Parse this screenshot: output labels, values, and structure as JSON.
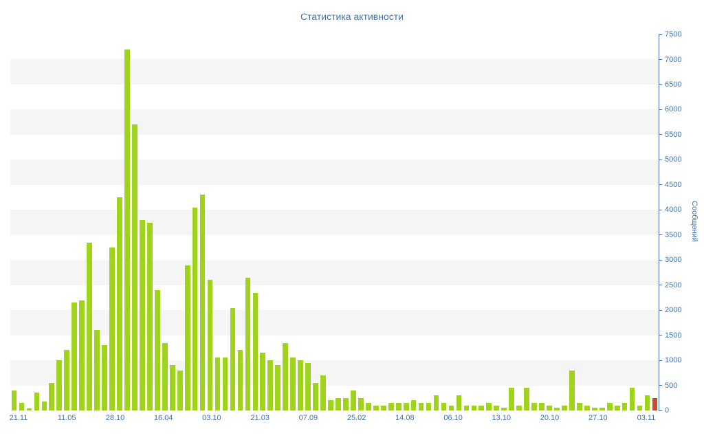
{
  "chart_data": {
    "type": "bar",
    "title": "Статистика активности",
    "xlabel": "",
    "ylabel": "Сообщений",
    "ylim": [
      0,
      7500
    ],
    "y_tick_step": 500,
    "y_tick_labels": [
      "0",
      "500",
      "1000",
      "1500",
      "2000",
      "2500",
      "3000",
      "3500",
      "4000",
      "4500",
      "5000",
      "5500",
      "6000",
      "6500",
      "7000",
      "7500"
    ],
    "x_tick_labels": [
      "21.11",
      "11.05",
      "28.10",
      "16.04",
      "03.10",
      "21.03",
      "07.09",
      "25.02",
      "14.08",
      "06.10",
      "13.10",
      "20.10",
      "27.10",
      "03.11"
    ],
    "values": [
      400,
      150,
      40,
      350,
      180,
      550,
      1000,
      1200,
      2150,
      2200,
      3350,
      1600,
      1300,
      3250,
      4250,
      7200,
      5700,
      3800,
      3750,
      2400,
      1350,
      900,
      800,
      2900,
      4050,
      4300,
      2600,
      1050,
      1050,
      2050,
      1200,
      2650,
      2350,
      1150,
      1000,
      900,
      1350,
      1050,
      1000,
      950,
      550,
      700,
      200,
      250,
      250,
      400,
      250,
      150,
      100,
      100,
      150,
      150,
      150,
      200,
      150,
      150,
      300,
      150,
      100,
      300,
      100,
      100,
      100,
      150,
      100,
      50,
      450,
      100,
      450,
      150,
      150,
      100,
      50,
      100,
      800,
      150,
      100,
      50,
      50,
      150,
      100,
      150,
      450,
      100,
      300,
      250
    ],
    "highlight_last": true,
    "legend": "none",
    "grid": "striped-bands",
    "colors": {
      "bar": "#a0d41c",
      "last_bar": "#cc4a2c",
      "axis_text": "#4572a7",
      "title_text": "#4572a7",
      "axis_line": "#4572a7",
      "stripe": "#f5f5f5",
      "background": "#ffffff"
    }
  }
}
